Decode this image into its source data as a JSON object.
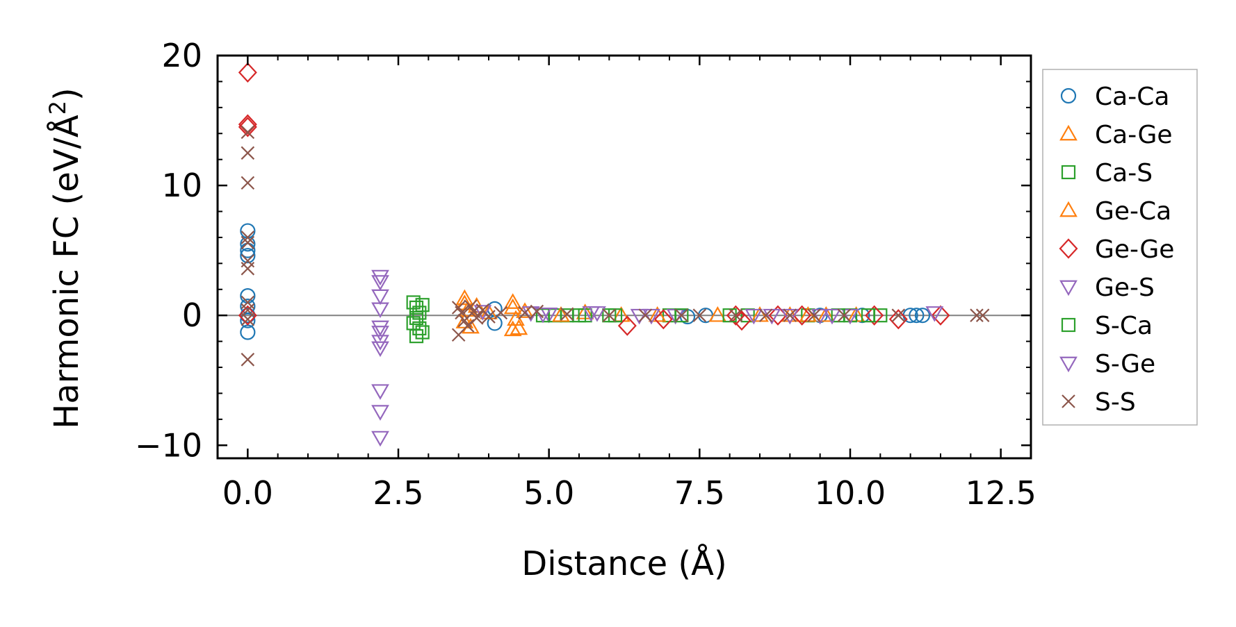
{
  "chart_data": {
    "type": "scatter",
    "xlabel": "Distance (Å)",
    "ylabel_main": "Harmonic FC (eV/Å",
    "ylabel_sup": "2",
    "ylabel_close": ")",
    "xlim": [
      -0.5,
      13.0
    ],
    "ylim": [
      -11,
      20
    ],
    "x_ticks": [
      0.0,
      2.5,
      5.0,
      7.5,
      10.0,
      12.5
    ],
    "x_tick_labels": [
      "0.0",
      "2.5",
      "5.0",
      "7.5",
      "10.0",
      "12.5"
    ],
    "y_ticks": [
      -10,
      0,
      10,
      20
    ],
    "y_tick_labels": [
      "−10",
      "0",
      "10",
      "20"
    ],
    "zero_line": true,
    "grid": false,
    "legend_position": "right, outside",
    "series": [
      {
        "name": "Ca-Ca",
        "marker": "circle",
        "color": "#1f77b4",
        "points": [
          [
            0,
            6.5
          ],
          [
            0,
            5.5
          ],
          [
            0,
            5.0
          ],
          [
            0,
            4.6
          ],
          [
            0,
            1.5
          ],
          [
            0,
            0.7
          ],
          [
            0,
            0
          ],
          [
            0,
            -0.4
          ],
          [
            0,
            -1.3
          ],
          [
            4.1,
            -0.6
          ],
          [
            4.1,
            0.5
          ],
          [
            7.3,
            -0.1
          ],
          [
            7.6,
            0
          ],
          [
            9.5,
            0
          ],
          [
            10.2,
            0
          ],
          [
            11.0,
            0
          ],
          [
            11.1,
            0
          ],
          [
            11.2,
            0
          ]
        ]
      },
      {
        "name": "Ca-Ge",
        "marker": "triangle-up",
        "color": "#ff7f0e",
        "points": [
          [
            3.6,
            1.3
          ],
          [
            3.6,
            0.9
          ],
          [
            3.65,
            0.4
          ],
          [
            3.6,
            -0.5
          ],
          [
            3.7,
            -0.9
          ],
          [
            4.4,
            1.0
          ],
          [
            4.4,
            0.6
          ],
          [
            4.45,
            -0.3
          ],
          [
            4.5,
            -1.0
          ],
          [
            4.4,
            -1.1
          ],
          [
            5.6,
            0.2
          ],
          [
            6.2,
            0
          ],
          [
            7.8,
            0
          ],
          [
            9.0,
            0
          ],
          [
            9.6,
            0
          ],
          [
            10.1,
            0
          ]
        ]
      },
      {
        "name": "Ca-S",
        "marker": "square",
        "color": "#2ca02c",
        "points": [
          [
            2.75,
            1.0
          ],
          [
            2.8,
            0.6
          ],
          [
            2.85,
            0.2
          ],
          [
            2.8,
            -0.2
          ],
          [
            2.75,
            -0.6
          ],
          [
            2.85,
            -1.0
          ],
          [
            2.8,
            -1.6
          ],
          [
            2.9,
            -1.3
          ],
          [
            2.9,
            0.8
          ],
          [
            5.1,
            0
          ],
          [
            5.3,
            0
          ],
          [
            5.6,
            0
          ],
          [
            6.0,
            0
          ],
          [
            7.0,
            0
          ],
          [
            8.3,
            0
          ],
          [
            9.3,
            0
          ],
          [
            10.0,
            0
          ],
          [
            10.5,
            0
          ]
        ]
      },
      {
        "name": "Ge-Ca",
        "marker": "triangle-up",
        "color": "#ff7f0e",
        "points": [
          [
            3.8,
            0.7
          ],
          [
            4.0,
            0.2
          ],
          [
            4.6,
            0.3
          ],
          [
            5.2,
            0
          ],
          [
            6.8,
            0
          ],
          [
            8.5,
            0
          ],
          [
            9.3,
            0
          ]
        ]
      },
      {
        "name": "Ge-Ge",
        "marker": "diamond",
        "color": "#d62728",
        "points": [
          [
            0,
            18.7
          ],
          [
            0,
            14.7
          ],
          [
            0,
            14.5
          ],
          [
            0,
            0
          ],
          [
            6.3,
            -0.8
          ],
          [
            6.9,
            -0.3
          ],
          [
            8.1,
            0
          ],
          [
            8.2,
            -0.4
          ],
          [
            8.8,
            0
          ],
          [
            9.2,
            0
          ],
          [
            10.4,
            0
          ],
          [
            10.8,
            -0.3
          ],
          [
            11.5,
            0
          ]
        ]
      },
      {
        "name": "Ge-S",
        "marker": "triangle-down",
        "color": "#9467bd",
        "points": [
          [
            2.2,
            3.0
          ],
          [
            2.2,
            2.6
          ],
          [
            2.2,
            1.5
          ],
          [
            2.2,
            0.5
          ],
          [
            2.2,
            -0.9
          ],
          [
            2.2,
            -1.3
          ],
          [
            2.2,
            -2.0
          ],
          [
            2.2,
            -2.5
          ],
          [
            2.2,
            -5.8
          ],
          [
            2.2,
            -7.4
          ],
          [
            2.2,
            -9.4
          ],
          [
            3.9,
            0.3
          ],
          [
            4.7,
            0.2
          ],
          [
            5.0,
            0.1
          ],
          [
            5.8,
            0.2
          ],
          [
            6.5,
            0
          ],
          [
            7.1,
            0
          ],
          [
            8.7,
            0
          ],
          [
            9.5,
            0
          ],
          [
            10.0,
            0
          ],
          [
            11.4,
            0.2
          ]
        ]
      },
      {
        "name": "S-Ca",
        "marker": "square",
        "color": "#2ca02c",
        "points": [
          [
            4.9,
            0
          ],
          [
            5.5,
            0
          ],
          [
            6.1,
            0
          ],
          [
            7.2,
            0
          ],
          [
            8.0,
            0
          ],
          [
            9.8,
            0
          ],
          [
            10.3,
            0
          ]
        ]
      },
      {
        "name": "S-Ge",
        "marker": "triangle-down",
        "color": "#9467bd",
        "points": [
          [
            4.9,
            0.1
          ],
          [
            5.7,
            0.2
          ],
          [
            6.7,
            0
          ],
          [
            8.4,
            0
          ],
          [
            9.0,
            0
          ],
          [
            9.7,
            0
          ]
        ]
      },
      {
        "name": "S-S",
        "marker": "x",
        "color": "#8c564b",
        "points": [
          [
            0,
            14.1
          ],
          [
            0,
            12.5
          ],
          [
            0,
            10.2
          ],
          [
            0,
            6.0
          ],
          [
            0,
            5.6
          ],
          [
            0,
            4.2
          ],
          [
            0,
            3.6
          ],
          [
            0,
            1.0
          ],
          [
            0,
            0.4
          ],
          [
            0,
            -0.3
          ],
          [
            0,
            -3.4
          ],
          [
            3.5,
            0.6
          ],
          [
            3.55,
            0.2
          ],
          [
            3.6,
            -0.4
          ],
          [
            3.5,
            -1.5
          ],
          [
            3.65,
            -0.8
          ],
          [
            3.7,
            0.7
          ],
          [
            3.75,
            0.3
          ],
          [
            3.8,
            -0.2
          ],
          [
            3.9,
            0.4
          ],
          [
            4.0,
            -0.1
          ],
          [
            4.2,
            0.2
          ],
          [
            4.6,
            0.2
          ],
          [
            4.8,
            0.3
          ],
          [
            5.3,
            0.1
          ],
          [
            6.0,
            0
          ],
          [
            6.6,
            0
          ],
          [
            7.2,
            0
          ],
          [
            7.5,
            0
          ],
          [
            8.1,
            0
          ],
          [
            8.6,
            0
          ],
          [
            9.0,
            0
          ],
          [
            9.4,
            0
          ],
          [
            9.9,
            0
          ],
          [
            10.8,
            0
          ],
          [
            12.1,
            0
          ],
          [
            12.2,
            0
          ]
        ]
      }
    ]
  }
}
